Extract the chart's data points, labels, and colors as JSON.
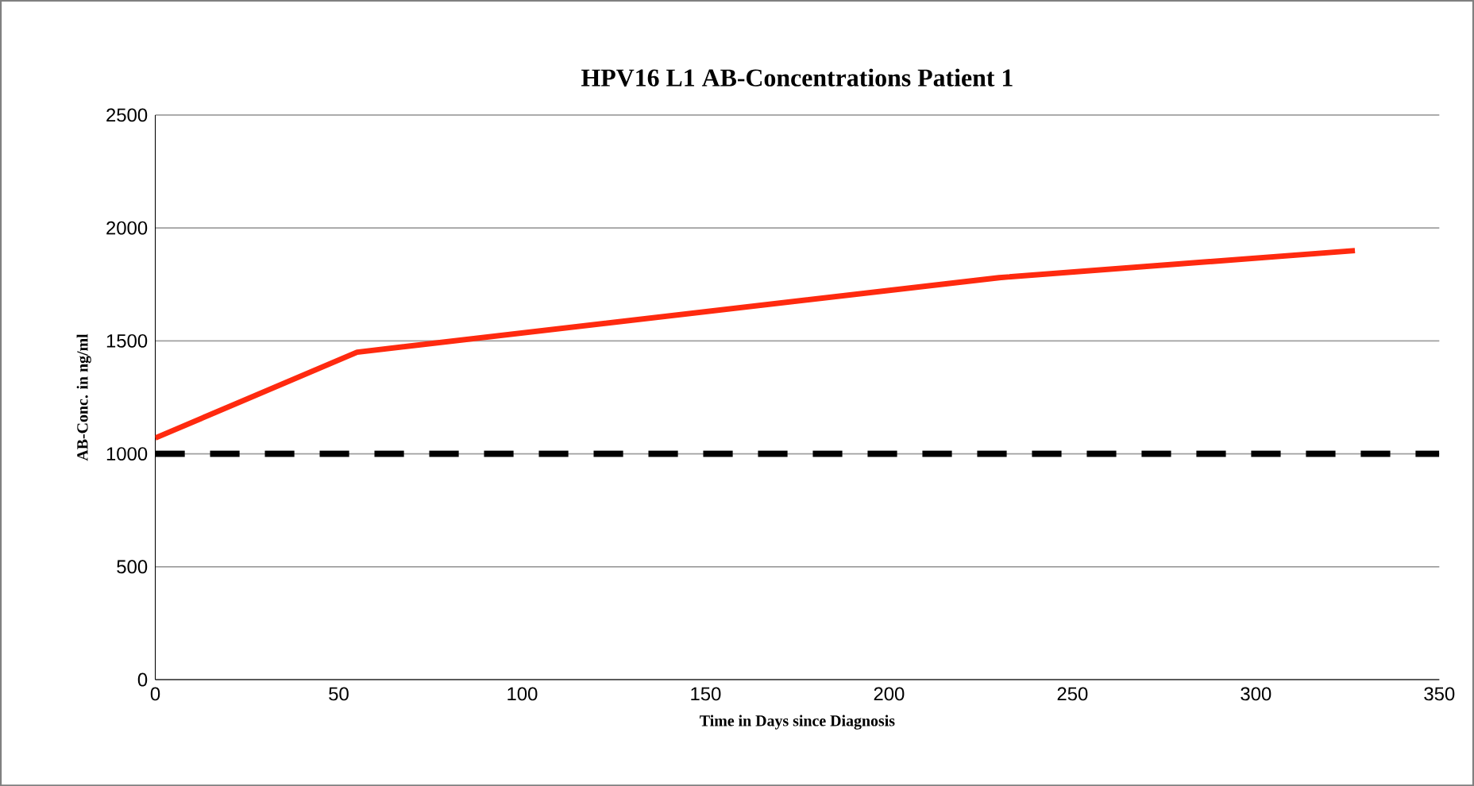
{
  "chart_data": {
    "type": "line",
    "title": "HPV16 L1 AB-Concentrations Patient 1",
    "xlabel": "Time in Days since Diagnosis",
    "ylabel": "AB-Conc. in ng/ml",
    "x": [
      0,
      55,
      230,
      327
    ],
    "series": [
      {
        "color": "#ff2a0f",
        "values": [
          1070,
          1450,
          1780,
          1900
        ]
      }
    ],
    "xlim": [
      0,
      350
    ],
    "xticks": [
      0,
      50,
      100,
      150,
      200,
      250,
      300,
      350
    ],
    "ylim": [
      0,
      2500
    ],
    "yticks": [
      0,
      500,
      1000,
      1500,
      2000,
      2500
    ],
    "ref_lines": [
      {
        "axis": "y",
        "value": 1000,
        "color": "#000000",
        "line_style": "dashed"
      }
    ],
    "grid": "y",
    "marker": "none",
    "line_style": "solid"
  }
}
